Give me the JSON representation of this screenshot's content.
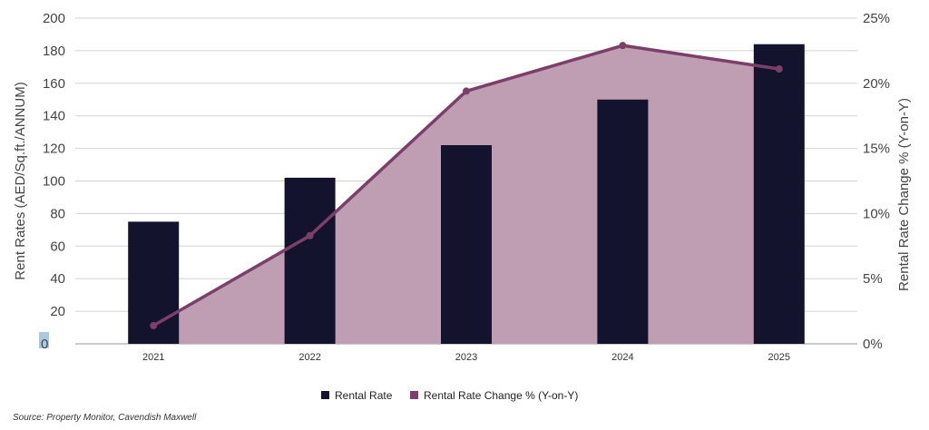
{
  "chart_data": {
    "type": "bar",
    "categories": [
      "2021",
      "2022",
      "2023",
      "2024",
      "2025"
    ],
    "series": [
      {
        "name": "Rental Rate",
        "kind": "bar",
        "axis": "left",
        "color": "#13132e",
        "values": [
          75,
          102,
          122,
          150,
          184
        ]
      },
      {
        "name": "Rental Rate Change % (Y-on-Y)",
        "kind": "line-area",
        "axis": "right",
        "color": "#7b3f6a",
        "fill": "#bf9db3",
        "values": [
          1.4,
          8.3,
          19.4,
          22.9,
          21.1
        ]
      }
    ],
    "ylabel": "Rent  Rates (AED/Sq.ft./ANNUM)",
    "y2label": "Rental Rate Change % (Y-on-Y)",
    "ylim": [
      0,
      200
    ],
    "y2lim": [
      0,
      25
    ],
    "yticks": [
      "0",
      "20",
      "40",
      "60",
      "80",
      "100",
      "120",
      "140",
      "160",
      "180",
      "200"
    ],
    "y2ticks": [
      "0%",
      "5%",
      "10%",
      "15%",
      "20%",
      "25%"
    ],
    "grid": true,
    "legend_position": "bottom-center"
  },
  "source_note": "Source: Property Monitor, Cavendish Maxwell"
}
